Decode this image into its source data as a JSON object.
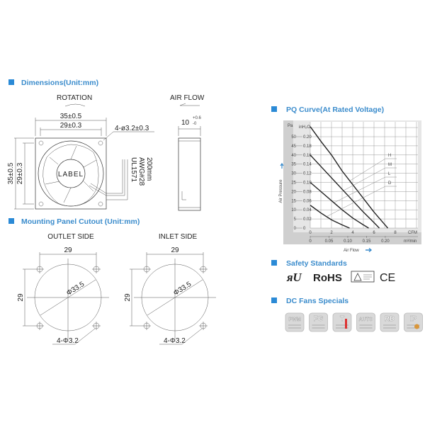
{
  "accent_color": "#3b8ccc",
  "dimensions": {
    "title": "Dimensions(Unit:mm)",
    "rotation_label": "ROTATION",
    "airflow_label": "AIR FLOW",
    "width_outer": "35±0.5",
    "width_inner": "29±0.3",
    "height_outer": "35±0.5",
    "height_inner": "29±0.3",
    "holes": "4-ø3.2±0.3",
    "hub_label": "LABEL",
    "wire_spec": [
      "UL1571",
      "AWG#28",
      "200mm"
    ],
    "thickness": "10",
    "thickness_tol_plus": "+0.6",
    "thickness_tol_minus": "-0"
  },
  "mounting": {
    "title": "Mounting Panel Cutout (Unit:mm)",
    "views": [
      {
        "label": "OUTLET SIDE",
        "spacing": "29",
        "side": "29",
        "diameter": "Φ33.5",
        "holes": "4-Φ3.2"
      },
      {
        "label": "INLET SIDE",
        "spacing": "29",
        "side": "29",
        "diameter": "Φ33.5",
        "holes": "4-Φ3.2"
      }
    ]
  },
  "pq": {
    "title": "PQ Curve(At Rated Voltage)",
    "y_label": "Air Pressure",
    "x_label": "Air Flow"
  },
  "chart_data": {
    "type": "line",
    "title": "PQ Curve(At Rated Voltage)",
    "xlabel": "Air Flow",
    "ylabel": "Air Pressure",
    "x_unit": "CFM",
    "x2_unit": "m³/min",
    "y_unit": "inH₂O",
    "y2_unit": "Pa",
    "xlim": [
      0,
      10
    ],
    "ylim": [
      0,
      0.23
    ],
    "x_ticks": [
      0,
      2,
      4,
      6,
      8
    ],
    "x2_ticks": [
      "0",
      "0.05",
      "0.10",
      "0.15",
      "0.20"
    ],
    "y_ticks": [
      "0",
      "0.02",
      "0.04",
      "0.06",
      "0.08",
      "0.10",
      "0.12",
      "0.14",
      "0.16",
      "0.18",
      "0.20"
    ],
    "y2_ticks": [
      "0",
      "5",
      "10",
      "15",
      "20",
      "25",
      "30",
      "35",
      "40",
      "45",
      "50"
    ],
    "grid": true,
    "series": [
      {
        "name": "H",
        "points": [
          [
            0,
            0.222
          ],
          [
            1,
            0.19
          ],
          [
            2,
            0.16
          ],
          [
            3,
            0.125
          ],
          [
            4,
            0.095
          ],
          [
            5,
            0.065
          ],
          [
            6,
            0.035
          ],
          [
            7,
            0.008
          ],
          [
            7.3,
            0
          ]
        ]
      },
      {
        "name": "M",
        "points": [
          [
            0,
            0.16
          ],
          [
            1,
            0.135
          ],
          [
            2,
            0.11
          ],
          [
            3,
            0.085
          ],
          [
            4,
            0.06
          ],
          [
            5,
            0.035
          ],
          [
            6,
            0.012
          ],
          [
            6.5,
            0
          ]
        ]
      },
      {
        "name": "L",
        "points": [
          [
            0,
            0.1
          ],
          [
            1,
            0.08
          ],
          [
            2,
            0.06
          ],
          [
            3,
            0.04
          ],
          [
            4,
            0.022
          ],
          [
            5,
            0.007
          ],
          [
            5.5,
            0
          ]
        ]
      },
      {
        "name": "D",
        "points": [
          [
            0,
            0.05
          ],
          [
            1,
            0.033
          ],
          [
            2,
            0.018
          ],
          [
            3,
            0.007
          ],
          [
            3.7,
            0
          ]
        ]
      }
    ]
  },
  "safety": {
    "title": "Safety Standards",
    "logos": [
      "UR",
      "RoHS",
      "CE"
    ]
  },
  "specials": {
    "title": "DC Fans Specials",
    "icons": [
      "PWM",
      "FG",
      "T",
      "AUTO",
      "RD",
      "IP"
    ]
  }
}
